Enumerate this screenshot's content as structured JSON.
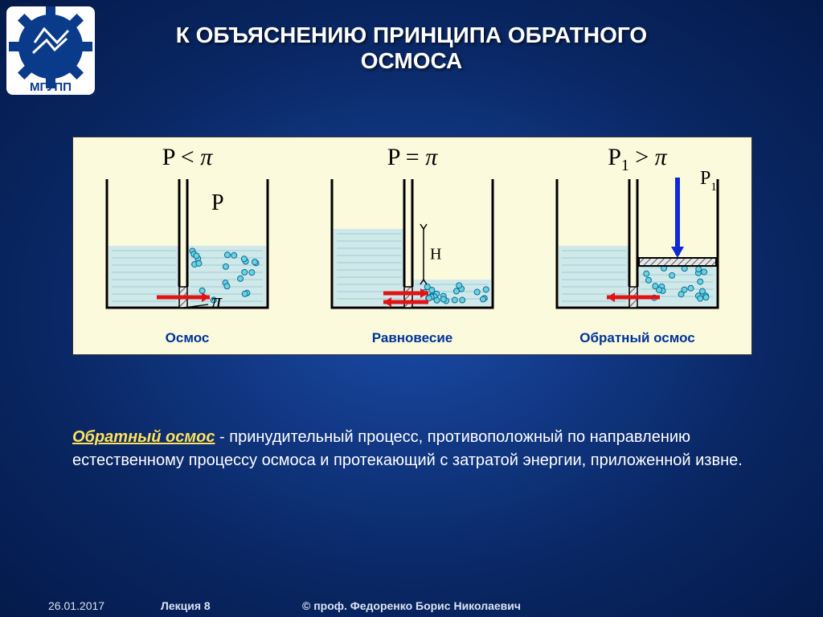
{
  "title_line1": "К ОБЪЯСНЕНИЮ ПРИНЦИПА ОБРАТНОГО",
  "title_line2": "ОСМОСА",
  "title_fontsize": 28,
  "title_color": "#ffffff",
  "logo": {
    "text": "МГУПП",
    "gear_color": "#0a3a8a",
    "accent_color": "#ffffff",
    "bg": "#ffffff"
  },
  "panel": {
    "bg": "#fbfadc",
    "border": "#333333"
  },
  "diagrams": [
    {
      "eq_html": "P < <i>π</i>",
      "label": "Осмос",
      "left_level": 0.55,
      "right_level": 0.55,
      "arrows": "right",
      "extra": "P_and_pi"
    },
    {
      "eq_html": "P = <i>π</i>",
      "label": "Равновесие",
      "left_level": 0.7,
      "right_level": 0.25,
      "arrows": "both",
      "extra": "H_marker"
    },
    {
      "eq_html": "P<span class=sub>1</span> > <i>π</i>",
      "label": "Обратный осмос",
      "left_level": 0.55,
      "right_level": 0.4,
      "arrows": "left",
      "extra": "piston"
    }
  ],
  "svg_style": {
    "vessel_stroke": "#000000",
    "vessel_stroke_w": 3,
    "water_fill": "#cfe8ea",
    "membrane_fill": "#e6e6e6",
    "membrane_hatch": "#555555",
    "particle_fill": "#6cd3d9",
    "particle_stroke": "#0a6aa0",
    "particle_r": 3.5,
    "arrow_red": "#e01414",
    "arrow_blue": "#1029d4",
    "text_color": "#000000",
    "text_font": "Times New Roman",
    "label_color": "#003399"
  },
  "explanation": {
    "term": "Обратный осмос",
    "rest": " - принудительный процесс, противоположный по направлению естественному процессу осмоса и протекающий с затратой энергии, приложенной извне.",
    "term_color": "#ffe25a",
    "body_color": "#ffffff",
    "fontsize": 20
  },
  "footer": {
    "date": "26.01.2017",
    "lecture": "Лекция 8",
    "credit": "© проф. Федоренко Борис Николаевич"
  }
}
